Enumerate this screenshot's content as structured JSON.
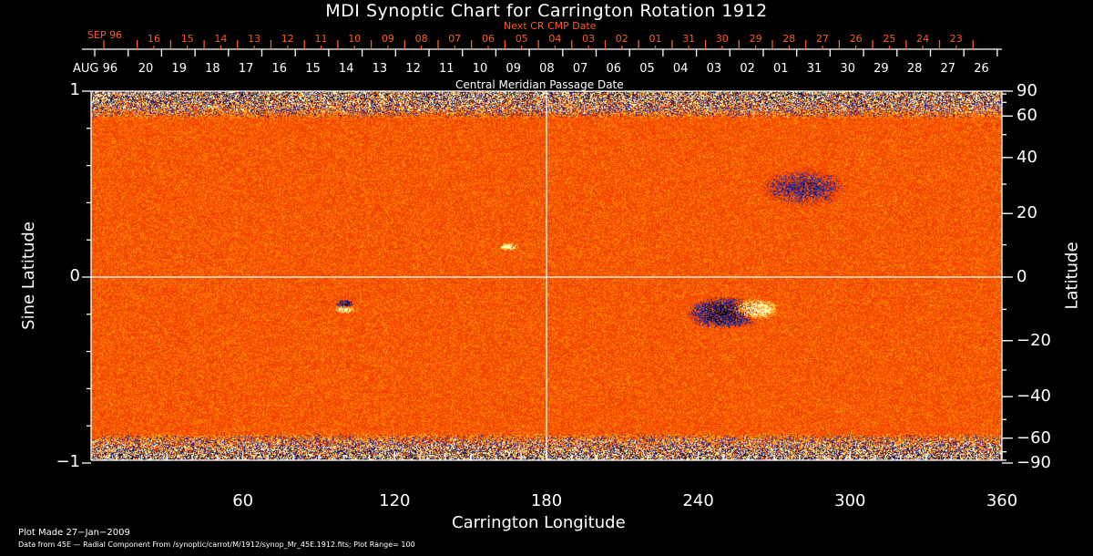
{
  "chart_data": {
    "type": "heatmap",
    "title": "MDI Synoptic Chart for Carrington Rotation 1912",
    "xlabel": "Carrington Longitude",
    "ylabel_left": "Sine Latitude",
    "ylabel_right": "Latitude",
    "xlim": [
      0,
      360
    ],
    "ylim": [
      -1,
      1
    ],
    "x_ticks": [
      "60",
      "120",
      "180",
      "240",
      "300",
      "360"
    ],
    "x_tick_values": [
      60,
      120,
      180,
      240,
      300,
      360
    ],
    "y_left_ticks": [
      "1",
      "0",
      "−1"
    ],
    "y_left_tick_values": [
      1,
      0,
      -1
    ],
    "y_right_ticks": [
      "90",
      "60",
      "40",
      "20",
      "0",
      "−20",
      "−40",
      "−60",
      "−90"
    ],
    "y_right_tick_values": [
      90,
      60,
      40,
      20,
      0,
      -20,
      -40,
      -60,
      -90
    ],
    "top_axis_label": "Central Meridian Passage Date",
    "top_axis_month": "AUG 96",
    "top_axis_dates": [
      "20",
      "19",
      "18",
      "17",
      "16",
      "15",
      "14",
      "13",
      "12",
      "11",
      "10",
      "09",
      "08",
      "07",
      "06",
      "05",
      "04",
      "03",
      "02",
      "01",
      "31",
      "30",
      "29",
      "28",
      "27",
      "26"
    ],
    "next_axis_label": "Next CR CMP Date",
    "next_axis_month": "SEP 96",
    "next_axis_dates": [
      "16",
      "15",
      "14",
      "13",
      "12",
      "11",
      "10",
      "09",
      "08",
      "07",
      "06",
      "05",
      "04",
      "03",
      "02",
      "01",
      "31",
      "30",
      "29",
      "28",
      "27",
      "26",
      "25",
      "24",
      "23"
    ],
    "plot_range": 100,
    "colors": {
      "background": "#ff3c00",
      "positive": "#ffff80",
      "negative": "#1a1a8c",
      "next_axis": "#ff5a1e"
    }
  },
  "footer": {
    "plot_made": "Plot Made 27−Jan−2009",
    "data_from": "Data from 45E — Radial Component From /synoptic/carrot/M/1912/synop_Mr_45E.1912.fits; Plot Range=  100"
  }
}
